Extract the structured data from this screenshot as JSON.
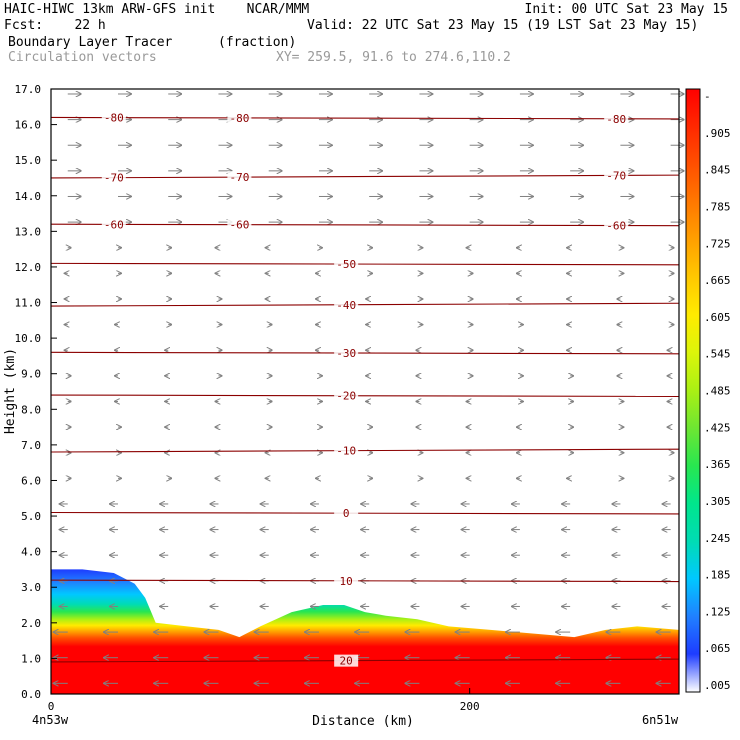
{
  "header": {
    "model_line": "HAIC-HIWC 13km ARW-GFS init    NCAR/MMM",
    "init_line": "Init: 00 UTC Sat 23 May 15",
    "fcst_line": "Fcst:    22 h",
    "valid_line": "Valid: 22 UTC Sat 23 May 15 (19 LST Sat 23 May 15)",
    "field_name": "Boundary Layer Tracer",
    "field_unit": "(fraction)",
    "overlay_name": "Circulation vectors",
    "xy_text": "XY= 259.5, 91.6 to 274.6,110.2"
  },
  "chart_data": {
    "type": "heatmap",
    "xlabel": "Distance (km)",
    "ylabel": "Height (km)",
    "xlim": [
      0,
      300
    ],
    "ylim": [
      0,
      17
    ],
    "x_ticks": [
      {
        "value": 0,
        "label": "0"
      },
      {
        "value": 200,
        "label": "200"
      }
    ],
    "x_endpoints": {
      "left": "4n53w",
      "right": "6n51w"
    },
    "y_ticks": [
      "0.0",
      "1.0",
      "2.0",
      "3.0",
      "4.0",
      "5.0",
      "6.0",
      "7.0",
      "8.0",
      "9.0",
      "10.0",
      "11.0",
      "12.0",
      "13.0",
      "14.0",
      "15.0",
      "16.0",
      "17.0"
    ],
    "colorbar": {
      "labels": [
        ".005",
        ".065",
        ".125",
        ".185",
        ".245",
        ".305",
        ".365",
        ".425",
        ".485",
        ".545",
        ".605",
        ".665",
        ".725",
        ".785",
        ".845",
        ".905",
        "-"
      ],
      "colors": [
        "#ffffff",
        "#1e3cff",
        "#2080ff",
        "#00c8ff",
        "#00dcb4",
        "#00e68c",
        "#28e650",
        "#6ee632",
        "#aaf014",
        "#dcf50a",
        "#ffeb00",
        "#ffc800",
        "#ffa000",
        "#ff7800",
        "#ff5000",
        "#ff2800",
        "#ff0000"
      ]
    },
    "tracer_profile": {
      "x_km": [
        0,
        15,
        30,
        40,
        45,
        50,
        65,
        80,
        90,
        100,
        115,
        130,
        140,
        150,
        160,
        175,
        190,
        210,
        230,
        250,
        265,
        280,
        300
      ],
      "top_km": [
        3.5,
        3.5,
        3.4,
        3.1,
        2.7,
        2.0,
        1.9,
        1.8,
        1.6,
        1.9,
        2.3,
        2.5,
        2.5,
        2.3,
        2.2,
        2.1,
        1.9,
        1.8,
        1.7,
        1.6,
        1.8,
        1.9,
        1.8
      ]
    },
    "temperature_contours": [
      {
        "label": "20",
        "height_km": 0.9
      },
      {
        "label": "10",
        "height_km": 3.2
      },
      {
        "label": "0",
        "height_km": 5.1
      },
      {
        "label": "-10",
        "height_km": 6.8
      },
      {
        "label": "-20",
        "height_km": 8.4
      },
      {
        "label": "-30",
        "height_km": 9.6
      },
      {
        "label": "-40",
        "height_km": 10.9
      },
      {
        "label": "-50",
        "height_km": 12.1
      },
      {
        "label": "-60",
        "height_km": 13.2
      },
      {
        "label": "-70",
        "height_km": 14.5
      },
      {
        "label": "-80",
        "height_km": 16.2
      }
    ]
  }
}
